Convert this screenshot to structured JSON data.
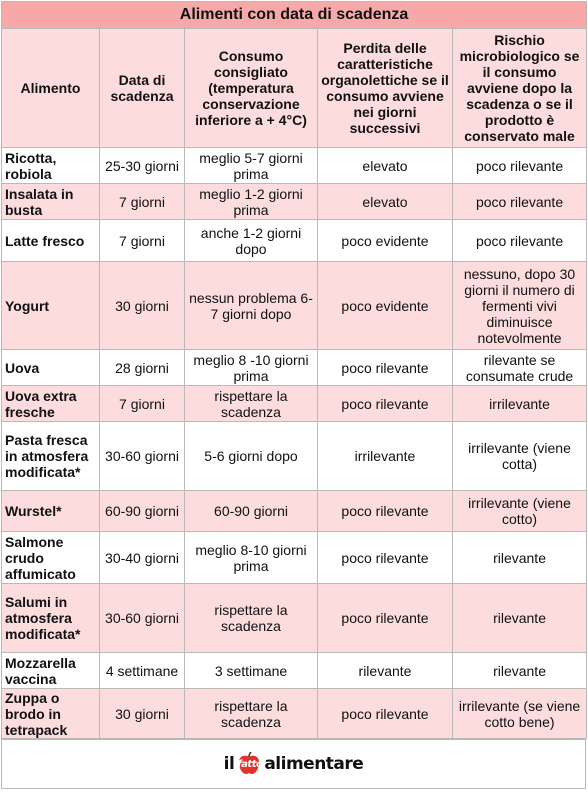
{
  "title": "Alimenti con data di scadenza",
  "headers": [
    "Alimento",
    "Data di scadenza",
    "Consumo consigliato (temperatura conservazione inferiore a + 4°C)",
    "Perdita delle caratteristiche organolettiche se il consumo avviene nei giorni successivi",
    "Rischio microbiologico se il consumo avviene dopo la scadenza o se il prodotto è conservato male"
  ],
  "rows": [
    [
      "Ricotta, robiola",
      "25-30 giorni",
      "meglio 5-7 giorni prima",
      "elevato",
      "poco rilevante"
    ],
    [
      "Insalata in busta",
      "7 giorni",
      "meglio 1-2 giorni prima",
      "elevato",
      "poco rilevante"
    ],
    [
      "Latte fresco",
      "7 giorni",
      "anche 1-2 giorni dopo",
      "poco evidente",
      "poco rilevante"
    ],
    [
      "Yogurt",
      "30 giorni",
      "nessun problema 6-7 giorni dopo",
      "poco evidente",
      "nessuno, dopo 30 giorni il numero di fermenti vivi diminuisce notevolmente"
    ],
    [
      "Uova",
      "28 giorni",
      "meglio  8 -10 giorni prima",
      "poco rilevante",
      "rilevante se consumate crude"
    ],
    [
      "Uova extra fresche",
      "7 giorni",
      "rispettare la scadenza",
      "poco rilevante",
      "irrilevante"
    ],
    [
      "Pasta fresca in atmosfera modificata*",
      "30-60 giorni",
      "5-6 giorni dopo",
      "irrilevante",
      "irrilevante (viene cotta)"
    ],
    [
      "Wurstel*",
      "60-90 giorni",
      "60-90 giorni",
      "poco rilevante",
      "irrilevante (viene cotto)"
    ],
    [
      "Salmone crudo affumicato",
      "30-40 giorni",
      "meglio 8-10 giorni prima",
      "poco rilevante",
      "rilevante"
    ],
    [
      "Salumi in atmosfera modificata*",
      "30-60 giorni",
      "rispettare la scadenza",
      "poco rilevante",
      "rilevante"
    ],
    [
      "Mozzarella vaccina",
      "4 settimane",
      "3 settimane",
      "rilevante",
      "rilevante"
    ],
    [
      "Zuppa o brodo in tetrapack",
      "30 giorni",
      "rispettare la scadenza",
      "poco rilevante",
      "irrilevante (se viene cotto bene)"
    ]
  ],
  "logo": {
    "prefix": "il",
    "apple_word": "fatto",
    "suffix": "alimentare"
  },
  "colors": {
    "title_bg": "#f7a8a8",
    "pink_row": "#fcdcdc",
    "logo_red": "#e0342e"
  }
}
